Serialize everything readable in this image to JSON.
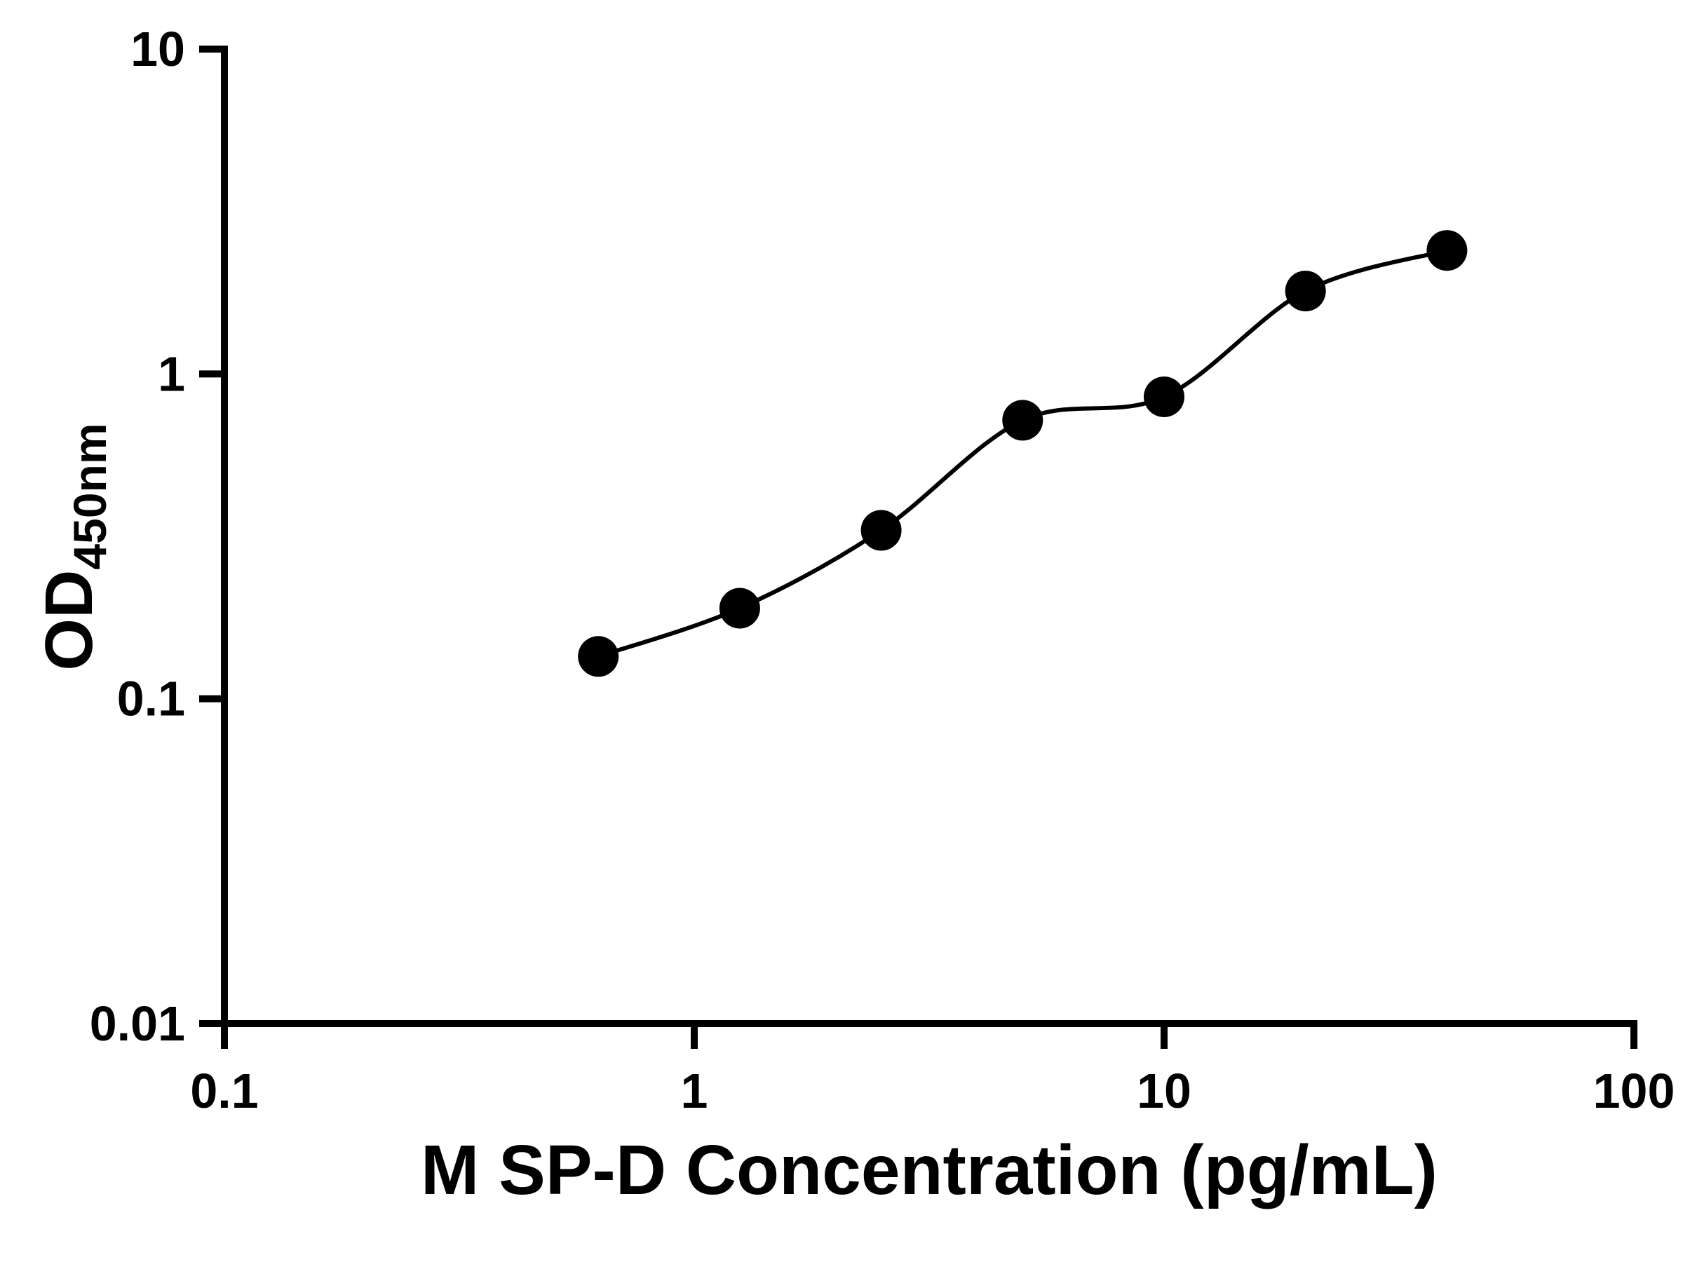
{
  "chart_data": {
    "type": "scatter",
    "x": [
      0.625,
      1.25,
      2.5,
      5,
      10,
      20,
      40
    ],
    "y": [
      0.135,
      0.19,
      0.33,
      0.72,
      0.85,
      1.8,
      2.4
    ],
    "x_scale": "log",
    "y_scale": "log",
    "xlim": [
      0.1,
      100
    ],
    "ylim": [
      0.01,
      10
    ],
    "x_ticks": [
      "0.1",
      "1",
      "10",
      "100"
    ],
    "y_ticks": [
      "0.01",
      "0.1",
      "1",
      "10"
    ],
    "xlabel": "M SP-D Concentration (pg/mL)",
    "ylabel_main": "OD",
    "ylabel_sub": "450nm",
    "title": "",
    "legend": "none",
    "grid": "off",
    "marker": "filled-circle",
    "marker_color": "#000000",
    "line_color": "#000000",
    "axis_color": "#000000",
    "fit_line": "smooth curve through points"
  }
}
